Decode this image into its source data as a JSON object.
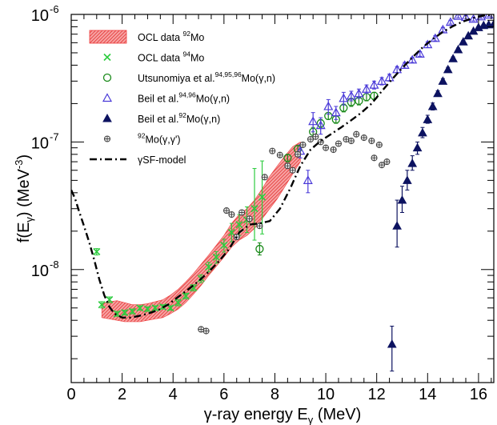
{
  "chart_data": {
    "type": "scatter",
    "title": "",
    "xlabel": "γ-ray energy E",
    "xlabel_sub": "γ",
    "xlabel_unit": " (MeV)",
    "ylabel": "f(E",
    "ylabel_sub": "γ",
    "ylabel_unit": ") (MeV",
    "ylabel_sup": "-3",
    "ylabel_end": ")",
    "xlim": [
      0,
      16.6
    ],
    "ylim": [
      1.3e-09,
      1e-06
    ],
    "yscale": "log",
    "grid": false,
    "legend_position": "top-left",
    "x_ticks": [
      0,
      2,
      4,
      6,
      8,
      10,
      12,
      14,
      16
    ],
    "x_tick_labels": [
      "0",
      "2",
      "4",
      "6",
      "8",
      "10",
      "12",
      "14",
      "16"
    ],
    "y_ticks": [
      1e-08,
      1e-07,
      1e-06
    ],
    "y_tick_labels": [
      {
        "base": "10",
        "exp": "-8"
      },
      {
        "base": "10",
        "exp": "-7"
      },
      {
        "base": "10",
        "exp": "-6"
      }
    ],
    "colors": {
      "band": "#ef3b3b",
      "ocl94": "#2ecc40",
      "utsu": "#1a8a1a",
      "beil9496": "#4a3ad8",
      "beil92": "#0c1260",
      "mogg": "#444444",
      "model": "#000000"
    },
    "series": [
      {
        "key": "band",
        "legend": {
          "pre": "OCL data ",
          "sup": "92",
          "post": "Mo"
        },
        "x": [
          1.2,
          1.5,
          1.8,
          2.1,
          2.4,
          2.7,
          3.0,
          3.3,
          3.6,
          3.9,
          4.2,
          4.5,
          4.8,
          5.1,
          5.4,
          5.7,
          6.0,
          6.3,
          6.6,
          6.9,
          7.2,
          7.5,
          7.8,
          8.1,
          8.4,
          8.7,
          9.0
        ],
        "low": [
          4.2e-09,
          4.1e-09,
          4e-09,
          3.9e-09,
          3.9e-09,
          3.9e-09,
          4e-09,
          4.1e-09,
          4.2e-09,
          4.5e-09,
          4.9e-09,
          5.5e-09,
          6.4e-09,
          7.5e-09,
          9e-09,
          1.06e-08,
          1.25e-08,
          1.5e-08,
          1.7e-08,
          1.85e-08,
          2.1e-08,
          2.5e-08,
          3e-08,
          3.6e-08,
          4.5e-08,
          5.6e-08,
          7e-08
        ],
        "high": [
          5.4e-09,
          5.6e-09,
          5.7e-09,
          5.5e-09,
          5.3e-09,
          5.3e-09,
          5.4e-09,
          5.6e-09,
          5.8e-09,
          6.3e-09,
          7e-09,
          8e-09,
          9.3e-09,
          1.1e-08,
          1.3e-08,
          1.55e-08,
          1.85e-08,
          2.3e-08,
          2.7e-08,
          3e-08,
          3.5e-08,
          4.3e-08,
          5.4e-08,
          6.5e-08,
          7.8e-08,
          9.2e-08,
          1e-07
        ]
      },
      {
        "key": "ocl94",
        "legend": {
          "pre": "OCL data ",
          "sup": "94",
          "post": "Mo"
        },
        "points": [
          [
            1.0,
            1.38e-08,
            1.3e-08,
            1.46e-08
          ],
          [
            1.2,
            5.3e-09,
            5e-09,
            5.6e-09
          ],
          [
            1.5,
            5.8e-09,
            5.5e-09,
            6.1e-09
          ],
          [
            1.8,
            4.5e-09,
            4.3e-09,
            4.7e-09
          ],
          [
            2.1,
            4.6e-09,
            4.4e-09,
            4.8e-09
          ],
          [
            2.4,
            4.7e-09,
            4.5e-09,
            4.9e-09
          ],
          [
            2.7,
            5e-09,
            4.8e-09,
            5.2e-09
          ],
          [
            3.0,
            4.9e-09,
            4.7e-09,
            5.1e-09
          ],
          [
            3.3,
            5e-09,
            4.8e-09,
            5.2e-09
          ],
          [
            3.6,
            5.1e-09,
            4.9e-09,
            5.3e-09
          ],
          [
            3.9,
            5e-09,
            4.8e-09,
            5.2e-09
          ],
          [
            4.2,
            5.5e-09,
            5.2e-09,
            5.8e-09
          ],
          [
            4.5,
            6.2e-09,
            5.9e-09,
            6.5e-09
          ],
          [
            4.8,
            7.2e-09,
            6.8e-09,
            7.6e-09
          ],
          [
            5.1,
            8.5e-09,
            7.9e-09,
            9.1e-09
          ],
          [
            5.4,
            1.05e-08,
            9.6e-09,
            1.14e-08
          ],
          [
            5.7,
            1.25e-08,
            1.12e-08,
            1.38e-08
          ],
          [
            6.0,
            1.55e-08,
            1.37e-08,
            1.73e-08
          ],
          [
            6.3,
            1.95e-08,
            1.65e-08,
            2.3e-08
          ],
          [
            6.6,
            2.25e-08,
            1.85e-08,
            2.7e-08
          ],
          [
            6.9,
            2.45e-08,
            1.95e-08,
            3.1e-08
          ],
          [
            7.2,
            3e-08,
            1.7e-08,
            6.2e-08
          ],
          [
            7.5,
            3.7e-08,
            1.9e-08,
            7.1e-08
          ]
        ]
      },
      {
        "key": "utsu",
        "legend": {
          "pre": "Utsunomiya et al.",
          "sup": "94,95,96",
          "post": "Mo(γ,n)"
        },
        "points": [
          [
            7.4,
            1.45e-08,
            1.3e-08,
            1.62e-08
          ],
          [
            8.5,
            7.5e-08,
            7e-08,
            8e-08
          ],
          [
            8.9,
            8.8e-08,
            8.2e-08,
            9.4e-08
          ],
          [
            9.5,
            1.2e-07,
            1.1e-07,
            1.3e-07
          ],
          [
            9.8,
            1.4e-07,
            1.3e-07,
            1.5e-07
          ],
          [
            10.1,
            1.6e-07,
            1.5e-07,
            1.7e-07
          ],
          [
            10.4,
            1.5e-07,
            1.4e-07,
            1.6e-07
          ],
          [
            10.7,
            1.85e-07,
            1.72e-07,
            1.98e-07
          ],
          [
            11.0,
            2.05e-07,
            1.9e-07,
            2.2e-07
          ],
          [
            11.3,
            2.1e-07,
            1.95e-07,
            2.25e-07
          ],
          [
            11.6,
            2.25e-07,
            2.1e-07,
            2.4e-07
          ],
          [
            11.9,
            2.3e-07,
            2.15e-07,
            2.45e-07
          ]
        ]
      },
      {
        "key": "beil9496",
        "legend": {
          "pre": "Beil et al.",
          "sup": "94,96",
          "post": "Mo(γ,n)"
        },
        "points": [
          [
            9.0,
            8.5e-08,
            7.5e-08,
            9.5e-08
          ],
          [
            9.3,
            5e-08,
            4e-08,
            6e-08
          ],
          [
            9.5,
            1.45e-07,
            1.2e-07,
            1.7e-07
          ],
          [
            9.8,
            1.35e-07,
            1.15e-07,
            1.55e-07
          ],
          [
            10.1,
            1.9e-07,
            1.65e-07,
            2.15e-07
          ],
          [
            10.4,
            1.7e-07,
            1.5e-07,
            1.9e-07
          ],
          [
            10.7,
            2.2e-07,
            1.95e-07,
            2.45e-07
          ],
          [
            11.0,
            2.3e-07,
            2.1e-07,
            2.5e-07
          ],
          [
            11.3,
            2.4e-07,
            2.2e-07,
            2.6e-07
          ],
          [
            11.6,
            2.6e-07,
            2.4e-07,
            2.8e-07
          ],
          [
            11.9,
            2.8e-07,
            2.6e-07,
            3e-07
          ],
          [
            12.2,
            3e-07,
            2.8e-07,
            3.2e-07
          ],
          [
            12.5,
            3.2e-07,
            3e-07,
            3.4e-07
          ],
          [
            12.8,
            3.7e-07,
            3.5e-07,
            3.9e-07
          ],
          [
            13.1,
            4e-07,
            3.8e-07,
            4.2e-07
          ],
          [
            13.4,
            4.4e-07,
            4.2e-07,
            4.6e-07
          ],
          [
            13.7,
            4.9e-07,
            4.7e-07,
            5.1e-07
          ],
          [
            14.0,
            5.8e-07,
            5.5e-07,
            6.1e-07
          ],
          [
            14.3,
            6.5e-07,
            6.2e-07,
            6.8e-07
          ],
          [
            14.6,
            7.6e-07,
            7.3e-07,
            7.9e-07
          ],
          [
            14.9,
            8.7e-07,
            8.4e-07,
            9e-07
          ],
          [
            15.2,
            9.7e-07,
            9.4e-07,
            1e-06
          ],
          [
            15.5,
            9.5e-07,
            9.2e-07,
            9.8e-07
          ],
          [
            15.8,
            9.2e-07,
            8.9e-07,
            9.5e-07
          ],
          [
            16.1,
            9.6e-07,
            9.3e-07,
            9.9e-07
          ],
          [
            16.4,
            9.9e-07,
            9.6e-07,
            1e-06
          ]
        ]
      },
      {
        "key": "beil92",
        "legend": {
          "pre": "Beil et al.",
          "sup": "92",
          "post": "Mo(γ,n)"
        },
        "points": [
          [
            12.6,
            2.6e-09,
            1.6e-09,
            3.6e-09
          ],
          [
            12.8,
            2.2e-08,
            1.5e-08,
            3.5e-08
          ],
          [
            13.0,
            3.5e-08,
            2.8e-08,
            4.5e-08
          ],
          [
            13.2,
            5e-08,
            4.2e-08,
            6e-08
          ],
          [
            13.4,
            6.8e-08,
            6e-08,
            7.8e-08
          ],
          [
            13.6,
            9e-08,
            8e-08,
            1e-07
          ],
          [
            13.8,
            1.18e-07,
            1.08e-07,
            1.3e-07
          ],
          [
            14.0,
            1.5e-07,
            1.4e-07,
            1.62e-07
          ],
          [
            14.2,
            1.9e-07,
            1.78e-07,
            2.02e-07
          ],
          [
            14.4,
            2.4e-07,
            2.28e-07,
            2.52e-07
          ],
          [
            14.6,
            3e-07,
            2.86e-07,
            3.14e-07
          ],
          [
            14.8,
            3.7e-07,
            3.55e-07,
            3.85e-07
          ],
          [
            15.0,
            4.5e-07,
            4.35e-07,
            4.65e-07
          ],
          [
            15.2,
            5.3e-07,
            5.15e-07,
            5.45e-07
          ],
          [
            15.4,
            6.1e-07,
            5.95e-07,
            6.25e-07
          ],
          [
            15.6,
            6.8e-07,
            6.65e-07,
            6.95e-07
          ],
          [
            15.8,
            7.4e-07,
            7.25e-07,
            7.55e-07
          ],
          [
            16.0,
            7.9e-07,
            7.75e-07,
            8.05e-07
          ],
          [
            16.2,
            8.2e-07,
            8.05e-07,
            8.35e-07
          ],
          [
            16.4,
            8.3e-07,
            8.15e-07,
            8.45e-07
          ],
          [
            16.6,
            8.4e-07,
            8.25e-07,
            8.55e-07
          ]
        ]
      },
      {
        "key": "mogg",
        "legend": {
          "pre": "",
          "sup": "92",
          "post": "Mo(γ,γ')"
        },
        "points": [
          [
            5.1,
            3.4e-09
          ],
          [
            5.3,
            3.3e-09
          ],
          [
            6.1,
            2.9e-08
          ],
          [
            6.3,
            2.7e-08
          ],
          [
            6.5,
            1.8e-08
          ],
          [
            6.7,
            2.8e-08
          ],
          [
            7.0,
            2.5e-08
          ],
          [
            7.4,
            2.2e-08
          ],
          [
            7.6,
            5.3e-08
          ],
          [
            7.9,
            8.5e-08
          ],
          [
            8.2,
            7.9e-08
          ],
          [
            8.5,
            6.5e-08
          ],
          [
            8.7,
            6e-08
          ],
          [
            8.9,
            8e-08
          ],
          [
            9.1,
            9.5e-08
          ],
          [
            9.4,
            1.05e-07
          ],
          [
            9.6,
            1.1e-07
          ],
          [
            9.8,
            1e-07
          ],
          [
            10.0,
            9e-08
          ],
          [
            10.3,
            8.7e-08
          ],
          [
            10.5,
            9.7e-08
          ],
          [
            10.8,
            1.05e-07
          ],
          [
            11.0,
            1.02e-07
          ],
          [
            11.2,
            1.15e-07
          ],
          [
            11.5,
            1.08e-07
          ],
          [
            11.8,
            1.02e-07
          ],
          [
            12.1,
            9.5e-08
          ],
          [
            11.9,
            7.5e-08
          ],
          [
            12.2,
            6.6e-08
          ],
          [
            12.4,
            7e-08
          ]
        ]
      },
      {
        "key": "model",
        "legend": {
          "pre": "γSF-model",
          "sup": "",
          "post": ""
        },
        "x": [
          0.0,
          0.15,
          0.3,
          0.5,
          0.7,
          0.9,
          1.1,
          1.3,
          1.5,
          1.7,
          2.0,
          2.3,
          2.6,
          3.0,
          3.4,
          3.8,
          4.2,
          4.6,
          5.0,
          5.4,
          5.8,
          6.2,
          6.6,
          7.0,
          7.4,
          7.8,
          8.2,
          8.6,
          9.0,
          9.4,
          9.8,
          10.2,
          10.6,
          11.0,
          11.4,
          11.8,
          12.2,
          12.6,
          13.0,
          13.4,
          13.8,
          14.2,
          14.6,
          15.0,
          15.4,
          15.8,
          16.2,
          16.6
        ],
        "y": [
          4.2e-08,
          3.6e-08,
          2.9e-08,
          2.2e-08,
          1.65e-08,
          1.2e-08,
          8.4e-09,
          6.3e-09,
          5.1e-09,
          4.5e-09,
          4.2e-09,
          4.2e-09,
          4.3e-09,
          4.5e-09,
          4.8e-09,
          5.3e-09,
          6.1e-09,
          7e-09,
          8.1e-09,
          9.6e-09,
          1.16e-08,
          1.45e-08,
          1.95e-08,
          2.25e-08,
          2.3e-08,
          2.4e-08,
          3e-08,
          4.3e-08,
          6.5e-08,
          8.7e-08,
          1.02e-07,
          1.15e-07,
          1.3e-07,
          1.48e-07,
          1.7e-07,
          2e-07,
          2.5e-07,
          3.1e-07,
          3.8e-07,
          4.6e-07,
          5.5e-07,
          6.4e-07,
          7.3e-07,
          8.1e-07,
          8.8e-07,
          9.4e-07,
          9.8e-07,
          1e-06
        ]
      }
    ]
  }
}
